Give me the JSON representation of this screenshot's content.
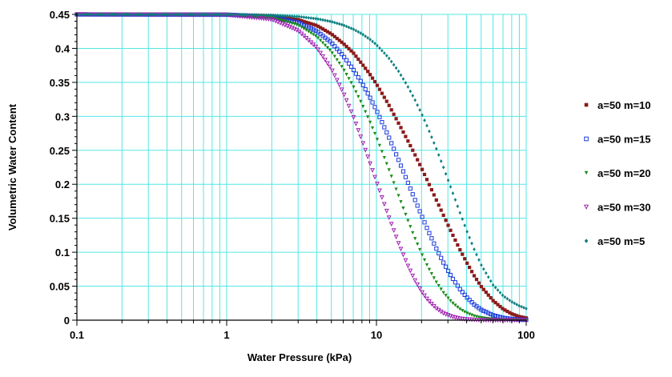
{
  "chart_data": {
    "type": "scatter",
    "xlabel": "Water Pressure (kPa)",
    "ylabel": "Volumetric Water Content",
    "x_scale": "log",
    "xlim": [
      0.1,
      100
    ],
    "ylim": [
      0,
      0.45
    ],
    "x_ticks": [
      {
        "value": 0.1,
        "label": "0.1"
      },
      {
        "value": 1,
        "label": "1"
      },
      {
        "value": 10,
        "label": "10"
      },
      {
        "value": 100,
        "label": "100"
      }
    ],
    "y_ticks": [
      {
        "value": 0,
        "label": "0"
      },
      {
        "value": 0.05,
        "label": "0.05"
      },
      {
        "value": 0.1,
        "label": "0.1"
      },
      {
        "value": 0.15,
        "label": "0.15"
      },
      {
        "value": 0.2,
        "label": "0.2"
      },
      {
        "value": 0.25,
        "label": "0.25"
      },
      {
        "value": 0.3,
        "label": "0.3"
      },
      {
        "value": 0.35,
        "label": "0.35"
      },
      {
        "value": 0.4,
        "label": "0.4"
      },
      {
        "value": 0.45,
        "label": "0.45"
      }
    ],
    "grid": true,
    "grid_color": "#55e6e6",
    "legend_position": "right",
    "series": [
      {
        "name": "a=50 m=10",
        "marker": "filled-square",
        "color": "#8b1a1a",
        "points": [
          [
            0.1,
            0.45
          ],
          [
            1,
            0.4498
          ],
          [
            2,
            0.4477
          ],
          [
            3,
            0.4421
          ],
          [
            4,
            0.4336
          ],
          [
            5,
            0.4213
          ],
          [
            6,
            0.4073
          ],
          [
            7,
            0.3935
          ],
          [
            8,
            0.3773
          ],
          [
            9,
            0.3626
          ],
          [
            10,
            0.3475
          ],
          [
            12,
            0.3181
          ],
          [
            14,
            0.2905
          ],
          [
            16,
            0.2664
          ],
          [
            18,
            0.2444
          ],
          [
            20,
            0.2238
          ],
          [
            22,
            0.2044
          ],
          [
            25,
            0.1778
          ],
          [
            28,
            0.1545
          ],
          [
            32,
            0.1273
          ],
          [
            36,
            0.1043
          ],
          [
            40,
            0.0851
          ],
          [
            45,
            0.0652
          ],
          [
            50,
            0.0496
          ],
          [
            60,
            0.0289
          ],
          [
            70,
            0.0165
          ],
          [
            80,
            0.0093
          ],
          [
            90,
            0.0052
          ],
          [
            100,
            0.0032
          ]
        ]
      },
      {
        "name": "a=50 m=15",
        "marker": "open-square",
        "color": "#1a3adc",
        "points": [
          [
            0.1,
            0.45
          ],
          [
            1,
            0.4497
          ],
          [
            2,
            0.4464
          ],
          [
            3,
            0.4381
          ],
          [
            4,
            0.4253
          ],
          [
            5,
            0.4085
          ],
          [
            6,
            0.3891
          ],
          [
            7,
            0.369
          ],
          [
            8,
            0.349
          ],
          [
            9,
            0.3289
          ],
          [
            10,
            0.309
          ],
          [
            12,
            0.2712
          ],
          [
            14,
            0.2365
          ],
          [
            16,
            0.2056
          ],
          [
            18,
            0.1782
          ],
          [
            20,
            0.1542
          ],
          [
            22,
            0.133
          ],
          [
            25,
            0.1062
          ],
          [
            28,
            0.0848
          ],
          [
            32,
            0.0625
          ],
          [
            36,
            0.046
          ],
          [
            40,
            0.0339
          ],
          [
            45,
            0.0228
          ],
          [
            50,
            0.0154
          ],
          [
            60,
            0.0073
          ],
          [
            70,
            0.0035
          ],
          [
            80,
            0.0018
          ],
          [
            90,
            0.0009
          ],
          [
            100,
            0.0005
          ]
        ]
      },
      {
        "name": "a=50 m=20",
        "marker": "filled-triangle-down",
        "color": "#1a8a1a",
        "points": [
          [
            0.1,
            0.45
          ],
          [
            1,
            0.4496
          ],
          [
            2,
            0.4452
          ],
          [
            3,
            0.4341
          ],
          [
            4,
            0.417
          ],
          [
            5,
            0.3951
          ],
          [
            6,
            0.37
          ],
          [
            7,
            0.344
          ],
          [
            8,
            0.318
          ],
          [
            9,
            0.293
          ],
          [
            10,
            0.269
          ],
          [
            12,
            0.224
          ],
          [
            14,
            0.184
          ],
          [
            16,
            0.15
          ],
          [
            18,
            0.1212
          ],
          [
            20,
            0.0978
          ],
          [
            22,
            0.0786
          ],
          [
            25,
            0.0565
          ],
          [
            28,
            0.0404
          ],
          [
            32,
            0.0257
          ],
          [
            36,
            0.0163
          ],
          [
            40,
            0.0104
          ],
          [
            45,
            0.0059
          ],
          [
            50,
            0.0034
          ],
          [
            60,
            0.0012
          ],
          [
            70,
            0.0004
          ],
          [
            80,
            0.0002
          ],
          [
            100,
            0.0
          ]
        ]
      },
      {
        "name": "a=50 m=30",
        "marker": "open-triangle-down",
        "color": "#a020b0",
        "points": [
          [
            0.1,
            0.45
          ],
          [
            1,
            0.4494
          ],
          [
            2,
            0.4426
          ],
          [
            3,
            0.4262
          ],
          [
            4,
            0.4009
          ],
          [
            5,
            0.37
          ],
          [
            6,
            0.335
          ],
          [
            7,
            0.3
          ],
          [
            8,
            0.265
          ],
          [
            9,
            0.233
          ],
          [
            10,
            0.204
          ],
          [
            12,
            0.154
          ],
          [
            14,
            0.114
          ],
          [
            16,
            0.083
          ],
          [
            18,
            0.0594
          ],
          [
            20,
            0.0423
          ],
          [
            22,
            0.0298
          ],
          [
            25,
            0.0176
          ],
          [
            28,
            0.0103
          ],
          [
            32,
            0.005
          ],
          [
            36,
            0.0024
          ],
          [
            40,
            0.0012
          ],
          [
            45,
            0.0005
          ],
          [
            50,
            0.0002
          ],
          [
            60,
            0.0
          ],
          [
            100,
            0.0
          ]
        ]
      },
      {
        "name": "a=50 m=5",
        "marker": "filled-diamond",
        "color": "#108080",
        "points": [
          [
            0.1,
            0.45
          ],
          [
            1,
            0.4499
          ],
          [
            2,
            0.449
          ],
          [
            3,
            0.4468
          ],
          [
            4,
            0.4436
          ],
          [
            5,
            0.4394
          ],
          [
            6,
            0.4343
          ],
          [
            7,
            0.4283
          ],
          [
            8,
            0.4214
          ],
          [
            9,
            0.4137
          ],
          [
            10,
            0.4053
          ],
          [
            12,
            0.3868
          ],
          [
            14,
            0.3668
          ],
          [
            16,
            0.346
          ],
          [
            18,
            0.325
          ],
          [
            20,
            0.304
          ],
          [
            22,
            0.2835
          ],
          [
            25,
            0.2535
          ],
          [
            28,
            0.225
          ],
          [
            32,
            0.19
          ],
          [
            36,
            0.159
          ],
          [
            40,
            0.132
          ],
          [
            45,
            0.104
          ],
          [
            50,
            0.0815
          ],
          [
            60,
            0.052
          ],
          [
            70,
            0.036
          ],
          [
            80,
            0.027
          ],
          [
            90,
            0.021
          ],
          [
            100,
            0.017
          ]
        ]
      }
    ]
  }
}
